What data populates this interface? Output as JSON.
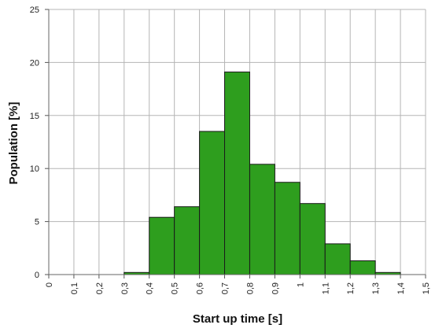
{
  "chart_data": {
    "type": "bar",
    "title": "",
    "xlabel": "Start up time [s]",
    "ylabel": "Population [%]",
    "x_ticks": [
      "0",
      "0,1",
      "0,2",
      "0,3",
      "0,4",
      "0,5",
      "0,6",
      "0,7",
      "0,8",
      "0,9",
      "1",
      "1,1",
      "1,2",
      "1,3",
      "1,4",
      "1,5"
    ],
    "y_ticks": [
      "0",
      "5",
      "10",
      "15",
      "20",
      "25"
    ],
    "ylim": [
      0,
      25
    ],
    "xlim": [
      0,
      1.5
    ],
    "bins": [
      {
        "start": 0.0,
        "end": 0.1,
        "value": 0
      },
      {
        "start": 0.1,
        "end": 0.2,
        "value": 0
      },
      {
        "start": 0.2,
        "end": 0.3,
        "value": 0
      },
      {
        "start": 0.3,
        "end": 0.4,
        "value": 0.2
      },
      {
        "start": 0.4,
        "end": 0.5,
        "value": 5.4
      },
      {
        "start": 0.5,
        "end": 0.6,
        "value": 6.4
      },
      {
        "start": 0.6,
        "end": 0.7,
        "value": 13.5
      },
      {
        "start": 0.7,
        "end": 0.8,
        "value": 19.1
      },
      {
        "start": 0.8,
        "end": 0.9,
        "value": 10.4
      },
      {
        "start": 0.9,
        "end": 1.0,
        "value": 8.7
      },
      {
        "start": 1.0,
        "end": 1.1,
        "value": 6.7
      },
      {
        "start": 1.1,
        "end": 1.2,
        "value": 2.9
      },
      {
        "start": 1.2,
        "end": 1.3,
        "value": 1.3
      },
      {
        "start": 1.3,
        "end": 1.4,
        "value": 0.2
      }
    ],
    "bar_color": "#2e9e1e",
    "bar_edge_color": "#1a1a1a",
    "grid": true,
    "grid_color": "#b5b5b5",
    "legend": "none"
  }
}
